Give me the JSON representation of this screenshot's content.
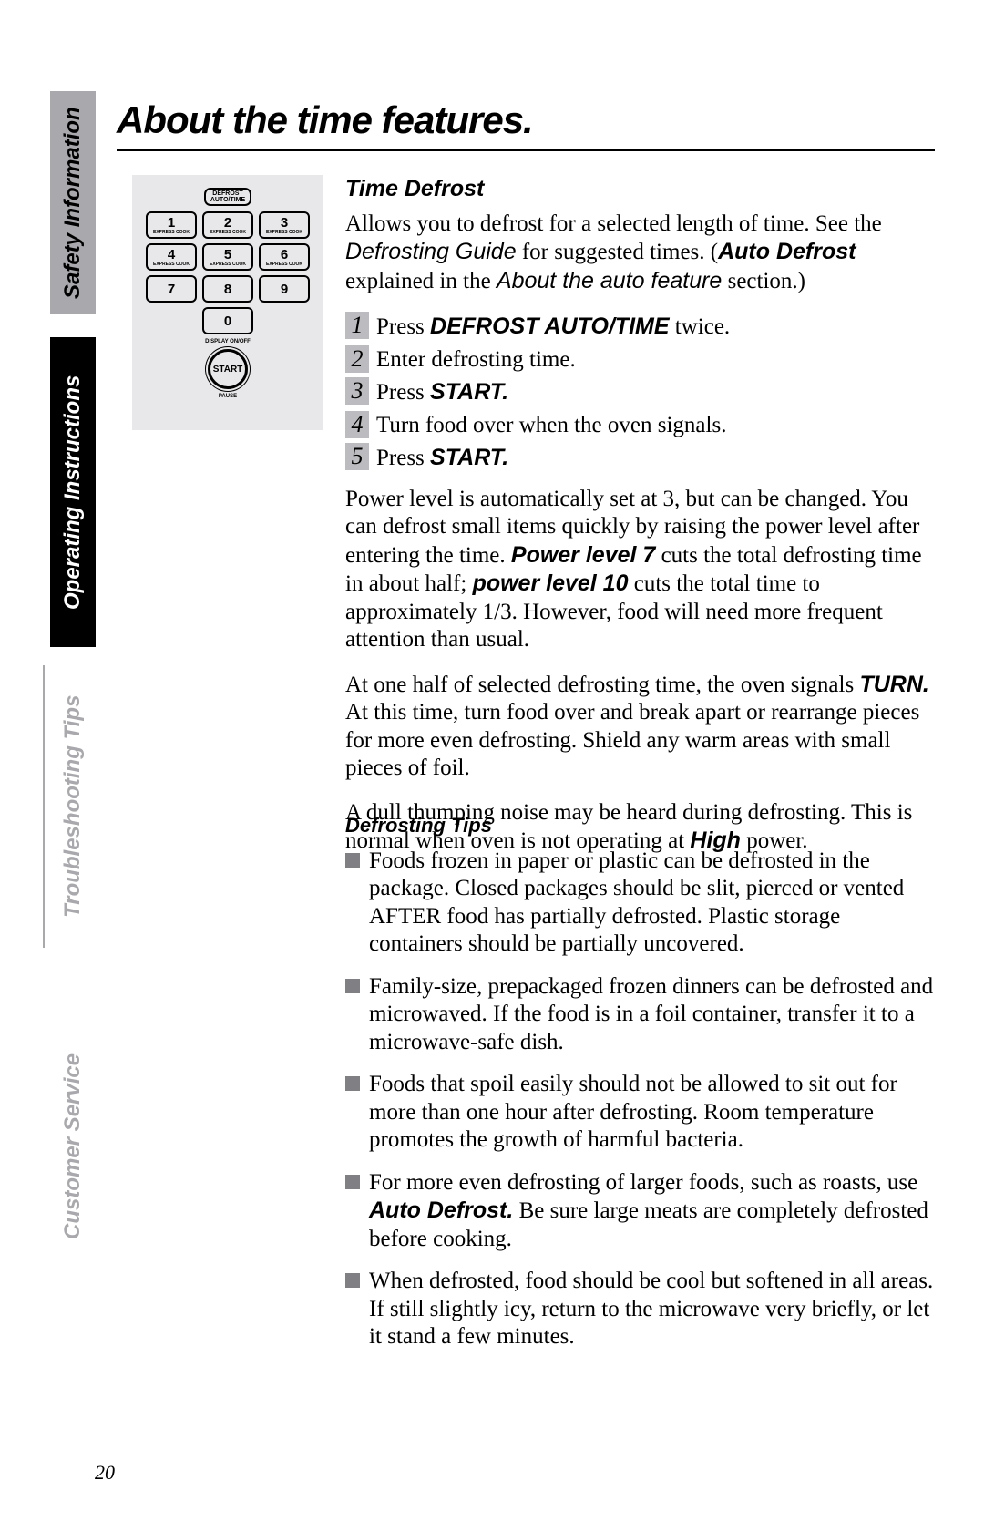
{
  "sidebar": {
    "safety": "Safety Information",
    "operating": "Operating Instructions",
    "troubleshoot": "Troubleshooting Tips",
    "customer": "Customer Service"
  },
  "title": "About the time features.",
  "keypad": {
    "defrost_line1": "DEFROST",
    "defrost_line2": "AUTO/TIME",
    "keys": [
      "1",
      "2",
      "3",
      "4",
      "5",
      "6",
      "7",
      "8",
      "9",
      "0"
    ],
    "express": "EXPRESS COOK",
    "display": "DISPLAY ON/OFF",
    "start": "START",
    "pause": "PAUSE"
  },
  "section": {
    "head": "Time Defrost",
    "intro_a": "Allows you to defrost for a selected length of time. See the ",
    "intro_b": "Defrosting Guide",
    "intro_c": " for suggested times. (",
    "intro_d": "Auto Defrost",
    "intro_e": " explained in the ",
    "intro_f": "About the auto feature",
    "intro_g": " section.)",
    "steps": [
      {
        "n": "1",
        "pre": "Press ",
        "bold": "DEFROST AUTO/TIME",
        "post": " twice."
      },
      {
        "n": "2",
        "pre": "Enter defrosting time.",
        "bold": "",
        "post": ""
      },
      {
        "n": "3",
        "pre": "Press ",
        "bold": "START.",
        "post": ""
      },
      {
        "n": "4",
        "pre": "Turn food over when the oven signals.",
        "bold": "",
        "post": ""
      },
      {
        "n": "5",
        "pre": "Press ",
        "bold": "START.",
        "post": ""
      }
    ],
    "p1_a": "Power level is automatically set at 3, but can be changed. You can defrost small items quickly by raising the power level after entering the time. ",
    "p1_b": "Power level 7",
    "p1_c": " cuts the total defrosting time in about half; ",
    "p1_d": "power level 10",
    "p1_e": " cuts the total time to approximately 1/3. However, food will need more frequent attention than usual.",
    "p2_a": "At one half of selected defrosting time, the oven signals ",
    "p2_b": "TURN.",
    "p2_c": " At this time, turn food over and break apart or rearrange pieces for more even defrosting. Shield any warm areas with small pieces of foil.",
    "p3_a": "A dull thumping noise may be heard during defrosting. This is normal when oven is not operating at ",
    "p3_b": "High",
    "p3_c": " power."
  },
  "tips": {
    "head": "Defrosting Tips",
    "items": [
      {
        "pre": "Foods frozen in paper or plastic can be defrosted in the package. Closed packages should be slit, pierced or vented AFTER food has partially defrosted. Plastic storage containers should be partially uncovered.",
        "bold": "",
        "post": ""
      },
      {
        "pre": "Family-size, prepackaged frozen dinners can be defrosted and microwaved. If the food is in a foil container, transfer it to a microwave-safe dish.",
        "bold": "",
        "post": ""
      },
      {
        "pre": "Foods that spoil easily should not be allowed to sit out for more than one hour after defrosting. Room temperature promotes the growth of harmful bacteria.",
        "bold": "",
        "post": ""
      },
      {
        "pre": "For more even defrosting of larger foods, such as roasts, use ",
        "bold": "Auto Defrost.",
        "post": " Be sure large meats are completely defrosted before cooking."
      },
      {
        "pre": "When defrosted, food should be cool but softened in all areas. If still slightly icy, return to the microwave very briefly, or let it stand a few minutes.",
        "bold": "",
        "post": ""
      }
    ]
  },
  "page_number": "20",
  "colors": {
    "grey_tab": "#a9a9ad",
    "grey_num": "#bcbcc0",
    "grey_bullet": "#808084",
    "keypad_bg": "#e8e8ea"
  }
}
